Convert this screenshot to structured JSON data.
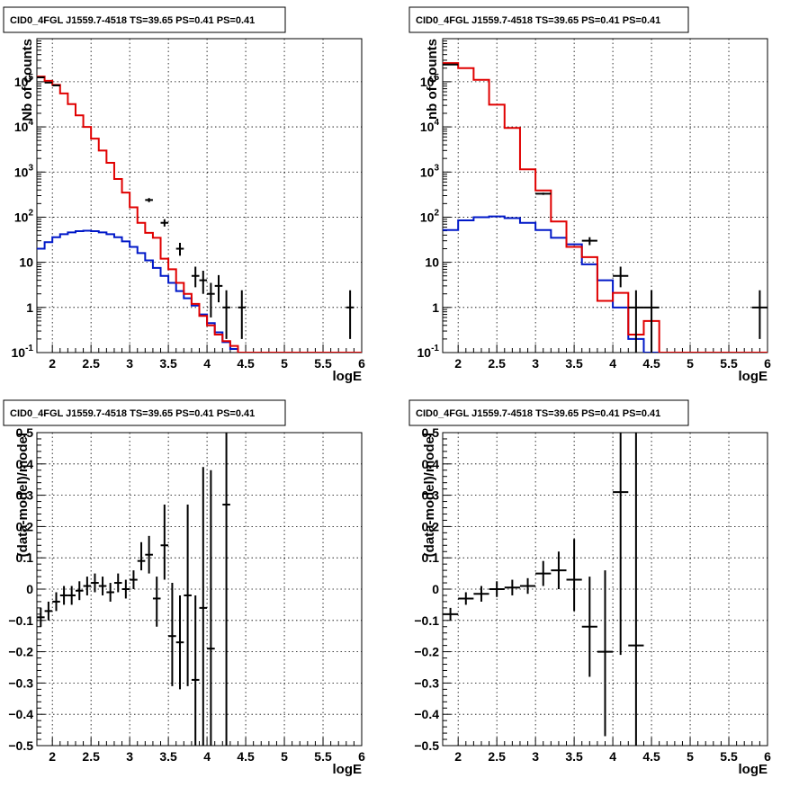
{
  "panels": [
    {
      "title": "CID0_4FGL J1559.7-4518 TS=39.65 PS=0.41 PS=0.41",
      "ylabel": "Nb of counts",
      "xlabel": "logE",
      "x_ticks": [
        "2",
        "2.5",
        "3",
        "3.5",
        "4",
        "4.5",
        "5",
        "5.5",
        "6"
      ],
      "y_ticks": [
        "10^-1",
        "1",
        "10",
        "10^2",
        "10^3",
        "10^4",
        "10^5"
      ]
    },
    {
      "title": "CID0_4FGL J1559.7-4518 TS=39.65 PS=0.41 PS=0.41",
      "ylabel": "nb of counts",
      "xlabel": "logE",
      "x_ticks": [
        "2",
        "2.5",
        "3",
        "3.5",
        "4",
        "4.5",
        "5",
        "5.5",
        "6"
      ],
      "y_ticks": [
        "10^-1",
        "1",
        "10",
        "10^2",
        "10^3",
        "10^4",
        "10^5"
      ]
    },
    {
      "title": "CID0_4FGL J1559.7-4518 TS=39.65 PS=0.41 PS=0.41",
      "ylabel": "(data-model)/model",
      "xlabel": "logE",
      "x_ticks": [
        "2",
        "2.5",
        "3",
        "3.5",
        "4",
        "4.5",
        "5",
        "5.5",
        "6"
      ],
      "y_ticks": [
        "−0.5",
        "−0.4",
        "−0.3",
        "−0.2",
        "−0.1",
        "0",
        "0.1",
        "0.2",
        "0.3",
        "0.4",
        "0.5"
      ]
    },
    {
      "title": "CID0_4FGL J1559.7-4518 TS=39.65 PS=0.41 PS=0.41",
      "ylabel": "(data-model)/model",
      "xlabel": "logE",
      "x_ticks": [
        "2",
        "2.5",
        "3",
        "3.5",
        "4",
        "4.5",
        "5",
        "5.5",
        "6"
      ],
      "y_ticks": [
        "−0.5",
        "−0.4",
        "−0.3",
        "−0.2",
        "−0.1",
        "0",
        "0.1",
        "0.2",
        "0.3",
        "0.4",
        "0.5"
      ]
    }
  ],
  "colors": {
    "data": "#000000",
    "model_total": "#e00000",
    "model_source": "#0018c8"
  },
  "chart_data": [
    {
      "type": "line",
      "scale": "log",
      "xlim": [
        1.8,
        6.0
      ],
      "ylim": [
        0.1,
        900000
      ],
      "grid": true,
      "model_total": {
        "edges": [
          1.8,
          1.9,
          2.0,
          2.1,
          2.2,
          2.3,
          2.4,
          2.5,
          2.6,
          2.7,
          2.8,
          2.9,
          3.0,
          3.1,
          3.2,
          3.3,
          3.4,
          3.5,
          3.6,
          3.7,
          3.8,
          3.9,
          4.0,
          4.1,
          4.2,
          4.3,
          4.4,
          4.5,
          4.6,
          6.0
        ],
        "values": [
          130000,
          105000,
          85000,
          55000,
          32000,
          18000,
          10000,
          5500,
          3000,
          1600,
          700,
          350,
          165,
          75,
          45,
          35,
          12,
          7,
          3.5,
          2.0,
          1.2,
          0.65,
          0.4,
          0.25,
          0.18,
          0.14,
          0.1,
          0.1,
          0.1
        ]
      },
      "model_source": {
        "edges": [
          1.8,
          1.9,
          2.0,
          2.1,
          2.2,
          2.3,
          2.4,
          2.5,
          2.6,
          2.7,
          2.8,
          2.9,
          3.0,
          3.1,
          3.2,
          3.3,
          3.4,
          3.5,
          3.6,
          3.7,
          3.8,
          3.9,
          4.0,
          4.1,
          4.2,
          4.3,
          4.4,
          4.5,
          4.6,
          6.0
        ],
        "values": [
          20,
          28,
          36,
          42,
          46,
          49,
          50,
          49,
          46,
          42,
          36,
          29,
          22,
          16,
          11,
          7.5,
          5,
          3.5,
          2.3,
          1.6,
          1.1,
          0.7,
          0.45,
          0.28,
          0.17,
          0.12,
          0.1,
          0.1,
          0.1
        ]
      },
      "data_points": [
        {
          "x": 1.85,
          "y": 125000,
          "xerr": 0.05,
          "ylo": 124000,
          "yhi": 126000
        },
        {
          "x": 1.95,
          "y": 96000,
          "xerr": 0.05,
          "ylo": 95000,
          "yhi": 97000
        },
        {
          "x": 2.05,
          "y": 83000,
          "xerr": 0.05,
          "ylo": 82000,
          "yhi": 84000
        },
        {
          "x": 3.25,
          "y": 240,
          "xerr": 0.05,
          "ylo": 215,
          "yhi": 265
        },
        {
          "x": 3.45,
          "y": 75,
          "xerr": 0.05,
          "ylo": 62,
          "yhi": 90
        },
        {
          "x": 3.65,
          "y": 20,
          "xerr": 0.05,
          "ylo": 14,
          "yhi": 27
        },
        {
          "x": 3.85,
          "y": 5,
          "xerr": 0.05,
          "ylo": 2.8,
          "yhi": 8
        },
        {
          "x": 3.95,
          "y": 4,
          "xerr": 0.05,
          "ylo": 2,
          "yhi": 6.5
        },
        {
          "x": 4.05,
          "y": 2,
          "xerr": 0.05,
          "ylo": 0.6,
          "yhi": 3.5
        },
        {
          "x": 4.15,
          "y": 3,
          "xerr": 0.05,
          "ylo": 1.3,
          "yhi": 5.2
        },
        {
          "x": 4.25,
          "y": 1,
          "xerr": 0.05,
          "ylo": 0.2,
          "yhi": 2.4
        },
        {
          "x": 4.45,
          "y": 1,
          "xerr": 0.05,
          "ylo": 0.2,
          "yhi": 2.4
        },
        {
          "x": 5.85,
          "y": 1,
          "xerr": 0.05,
          "ylo": 0.2,
          "yhi": 2.4
        }
      ]
    },
    {
      "type": "line",
      "scale": "log",
      "xlim": [
        1.8,
        6.0
      ],
      "ylim": [
        0.1,
        900000
      ],
      "grid": true,
      "model_total": {
        "edges": [
          1.8,
          2.0,
          2.2,
          2.4,
          2.6,
          2.8,
          3.0,
          3.2,
          3.4,
          3.6,
          3.8,
          4.0,
          4.2,
          4.4,
          4.6,
          4.8,
          6.0
        ],
        "values": [
          260000,
          200000,
          110000,
          31000,
          9500,
          1150,
          390,
          80,
          22,
          13,
          1.4,
          2.1,
          0.25,
          0.5,
          0.1,
          0.1
        ]
      },
      "model_source": {
        "edges": [
          1.8,
          2.0,
          2.2,
          2.4,
          2.6,
          2.8,
          3.0,
          3.2,
          3.4,
          3.6,
          3.8,
          4.0,
          4.2,
          4.4,
          4.6,
          4.8,
          6.0
        ],
        "values": [
          52,
          85,
          100,
          104,
          95,
          75,
          52,
          35,
          25,
          9,
          4,
          1,
          0.2,
          0.1,
          0.1,
          0.1
        ]
      },
      "data_points": [
        {
          "x": 1.9,
          "y": 240000,
          "xerr": 0.1,
          "ylo": 239000,
          "yhi": 241000
        },
        {
          "x": 3.1,
          "y": 330,
          "xerr": 0.1,
          "ylo": 312,
          "yhi": 348
        },
        {
          "x": 3.7,
          "y": 30,
          "xerr": 0.1,
          "ylo": 24,
          "yhi": 36
        },
        {
          "x": 4.1,
          "y": 5,
          "xerr": 0.1,
          "ylo": 2.8,
          "yhi": 8
        },
        {
          "x": 4.3,
          "y": 1,
          "xerr": 0.1,
          "ylo": 0.1,
          "yhi": 2.4
        },
        {
          "x": 4.5,
          "y": 1,
          "xerr": 0.1,
          "ylo": 0.1,
          "yhi": 2.4
        },
        {
          "x": 5.9,
          "y": 1,
          "xerr": 0.1,
          "ylo": 0.2,
          "yhi": 2.4
        }
      ]
    },
    {
      "type": "scatter",
      "scale": "linear",
      "xlim": [
        1.8,
        6.0
      ],
      "ylim": [
        -0.5,
        0.5
      ],
      "grid": true,
      "data_points": [
        {
          "x": 1.85,
          "y": -0.09,
          "xerr": 0.05,
          "ylo": -0.12,
          "yhi": -0.06
        },
        {
          "x": 1.95,
          "y": -0.07,
          "xerr": 0.05,
          "ylo": -0.1,
          "yhi": -0.04
        },
        {
          "x": 2.05,
          "y": -0.04,
          "xerr": 0.05,
          "ylo": -0.07,
          "yhi": -0.01
        },
        {
          "x": 2.15,
          "y": -0.02,
          "xerr": 0.05,
          "ylo": -0.05,
          "yhi": 0.01
        },
        {
          "x": 2.25,
          "y": -0.02,
          "xerr": 0.05,
          "ylo": -0.05,
          "yhi": 0.01
        },
        {
          "x": 2.35,
          "y": -0.005,
          "xerr": 0.05,
          "ylo": -0.035,
          "yhi": 0.025
        },
        {
          "x": 2.45,
          "y": 0.01,
          "xerr": 0.05,
          "ylo": -0.02,
          "yhi": 0.04
        },
        {
          "x": 2.55,
          "y": 0.02,
          "xerr": 0.05,
          "ylo": -0.01,
          "yhi": 0.05
        },
        {
          "x": 2.65,
          "y": 0.01,
          "xerr": 0.05,
          "ylo": -0.02,
          "yhi": 0.04
        },
        {
          "x": 2.75,
          "y": -0.01,
          "xerr": 0.05,
          "ylo": -0.04,
          "yhi": 0.02
        },
        {
          "x": 2.85,
          "y": 0.02,
          "xerr": 0.05,
          "ylo": -0.01,
          "yhi": 0.05
        },
        {
          "x": 2.95,
          "y": 0.0,
          "xerr": 0.05,
          "ylo": -0.03,
          "yhi": 0.03
        },
        {
          "x": 3.05,
          "y": 0.03,
          "xerr": 0.05,
          "ylo": 0.0,
          "yhi": 0.06
        },
        {
          "x": 3.15,
          "y": 0.09,
          "xerr": 0.05,
          "ylo": 0.06,
          "yhi": 0.15
        },
        {
          "x": 3.25,
          "y": 0.11,
          "xerr": 0.05,
          "ylo": 0.05,
          "yhi": 0.17
        },
        {
          "x": 3.35,
          "y": -0.03,
          "xerr": 0.05,
          "ylo": -0.12,
          "yhi": 0.04
        },
        {
          "x": 3.45,
          "y": 0.14,
          "xerr": 0.05,
          "ylo": 0.03,
          "yhi": 0.27
        },
        {
          "x": 3.55,
          "y": -0.15,
          "xerr": 0.05,
          "ylo": -0.31,
          "yhi": 0.02
        },
        {
          "x": 3.65,
          "y": -0.17,
          "xerr": 0.05,
          "ylo": -0.32,
          "yhi": -0.02
        },
        {
          "x": 3.75,
          "y": -0.02,
          "xerr": 0.05,
          "ylo": -0.31,
          "yhi": 0.27
        },
        {
          "x": 3.85,
          "y": -0.29,
          "xerr": 0.05,
          "ylo": -0.5,
          "yhi": -0.02
        },
        {
          "x": 3.95,
          "y": -0.06,
          "xerr": 0.05,
          "ylo": -0.5,
          "yhi": 0.39
        },
        {
          "x": 4.05,
          "y": -0.19,
          "xerr": 0.05,
          "ylo": -0.5,
          "yhi": 0.38
        },
        {
          "x": 4.25,
          "y": 0.27,
          "xerr": 0.05,
          "ylo": -0.5,
          "yhi": 0.5
        }
      ]
    },
    {
      "type": "scatter",
      "scale": "linear",
      "xlim": [
        1.8,
        6.0
      ],
      "ylim": [
        -0.5,
        0.5
      ],
      "grid": true,
      "data_points": [
        {
          "x": 1.9,
          "y": -0.08,
          "xerr": 0.1,
          "ylo": -0.1,
          "yhi": -0.06
        },
        {
          "x": 2.1,
          "y": -0.03,
          "xerr": 0.1,
          "ylo": -0.05,
          "yhi": -0.01
        },
        {
          "x": 2.3,
          "y": -0.015,
          "xerr": 0.1,
          "ylo": -0.04,
          "yhi": 0.01
        },
        {
          "x": 2.5,
          "y": 0.0,
          "xerr": 0.1,
          "ylo": -0.025,
          "yhi": 0.025
        },
        {
          "x": 2.7,
          "y": 0.005,
          "xerr": 0.1,
          "ylo": -0.02,
          "yhi": 0.03
        },
        {
          "x": 2.9,
          "y": 0.01,
          "xerr": 0.1,
          "ylo": -0.015,
          "yhi": 0.035
        },
        {
          "x": 3.1,
          "y": 0.05,
          "xerr": 0.1,
          "ylo": 0.01,
          "yhi": 0.09
        },
        {
          "x": 3.3,
          "y": 0.06,
          "xerr": 0.1,
          "ylo": 0.0,
          "yhi": 0.12
        },
        {
          "x": 3.5,
          "y": 0.03,
          "xerr": 0.1,
          "ylo": -0.07,
          "yhi": 0.16
        },
        {
          "x": 3.7,
          "y": -0.12,
          "xerr": 0.1,
          "ylo": -0.28,
          "yhi": 0.04
        },
        {
          "x": 3.9,
          "y": -0.2,
          "xerr": 0.1,
          "ylo": -0.47,
          "yhi": 0.06
        },
        {
          "x": 4.1,
          "y": 0.31,
          "xerr": 0.1,
          "ylo": -0.21,
          "yhi": 0.5
        },
        {
          "x": 4.3,
          "y": -0.18,
          "xerr": 0.1,
          "ylo": -0.5,
          "yhi": 0.5
        }
      ]
    }
  ]
}
